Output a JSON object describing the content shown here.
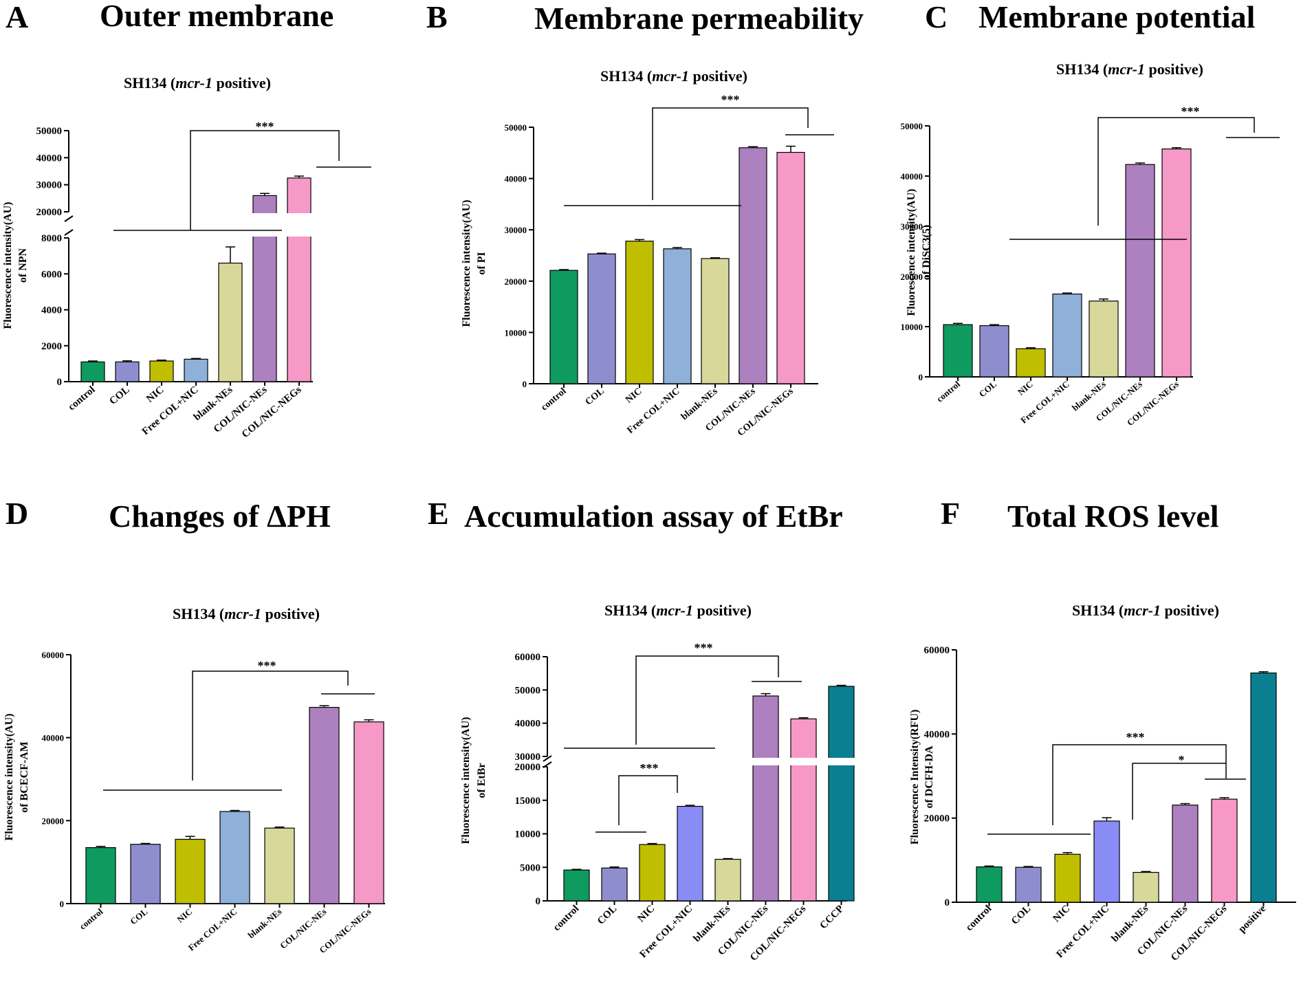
{
  "figure": {
    "panels": [
      {
        "letter": "A",
        "title": "Outer membrane"
      },
      {
        "letter": "B",
        "title": "Membrane permeability"
      },
      {
        "letter": "C",
        "title": "Membrane potential"
      },
      {
        "letter": "D",
        "title": "Changes of ΔPH"
      },
      {
        "letter": "E",
        "title": "Accumulation assay of EtBr"
      },
      {
        "letter": "F",
        "title": "Total ROS level"
      }
    ]
  },
  "colors": {
    "control": "#0f9a60",
    "COL": "#8e8ecf",
    "NIC": "#c0be00",
    "Free COL+NIC": "#8fb0d8",
    "Free COL+NIC (E,F)": "#8a8cf6",
    "blank-NEs": "#d8d89a",
    "COL/NIC-NEs": "#ad80c0",
    "COL/NIC-NEGs": "#f799c7",
    "CCCP": "#0a7f92",
    "positive": "#0a7f92"
  },
  "chart_data": [
    {
      "type": "bar",
      "panel": "A",
      "title": "Outer membrane",
      "subtitle": [
        "SH134 (",
        "mcr-1",
        " positive)"
      ],
      "ylabel": [
        "Fluorescence intensity(AU)",
        "of  NPN"
      ],
      "categories": [
        "control",
        "COL",
        "NIC",
        "Free COL+NIC",
        "blank-NEs",
        "COL/NIC-NEs",
        "COL/NIC-NEGs"
      ],
      "values": [
        1100,
        1100,
        1150,
        1250,
        6600,
        26000,
        32500
      ],
      "errors": [
        50,
        60,
        50,
        40,
        900,
        800,
        700
      ],
      "broken_axis": {
        "lower": [
          0,
          8000
        ],
        "upper": [
          20000,
          50000
        ]
      },
      "yticks_lower": [
        "0",
        "2000",
        "4000",
        "6000",
        "8000"
      ],
      "yticks_upper": [
        "20000",
        "30000",
        "40000",
        "50000"
      ],
      "significance": [
        "***"
      ]
    },
    {
      "type": "bar",
      "panel": "B",
      "title": "Membrane permeability",
      "subtitle": [
        "SH134 (",
        "mcr-1",
        " positive)"
      ],
      "ylabel": [
        "Fluorescence intensity(AU)",
        "of  PI"
      ],
      "categories": [
        "control",
        "COL",
        "NIC",
        "Free COL+NIC",
        "blank-NEs",
        "COL/NIC-NEs",
        "COL/NIC-NEGs"
      ],
      "values": [
        22100,
        25300,
        27800,
        26300,
        24400,
        46000,
        45100
      ],
      "errors": [
        150,
        150,
        300,
        250,
        150,
        200,
        1200
      ],
      "ylim": [
        0,
        50000
      ],
      "yticks": [
        "0",
        "10000",
        "20000",
        "30000",
        "40000",
        "50000"
      ],
      "significance": [
        "***"
      ]
    },
    {
      "type": "bar",
      "panel": "C",
      "title": "Membrane potential",
      "subtitle": [
        "SH134 (",
        "mcr-1",
        " positive)"
      ],
      "ylabel": [
        "Fluorescence intensity(AU)",
        "of  DiSC3(5)"
      ],
      "categories": [
        "control",
        "COL",
        "NIC",
        "Free COL+NIC",
        "blank-NEs",
        "COL/NIC-NEs",
        "COL/NIC-NEGs"
      ],
      "values": [
        10400,
        10200,
        5600,
        16500,
        15100,
        42300,
        45400
      ],
      "errors": [
        250,
        200,
        200,
        200,
        400,
        300,
        250
      ],
      "ylim": [
        0,
        50000
      ],
      "yticks": [
        "0",
        "10000",
        "20000",
        "30000",
        "40000",
        "50000"
      ],
      "significance": [
        "***"
      ]
    },
    {
      "type": "bar",
      "panel": "D",
      "title": "Changes of ΔPH",
      "subtitle": [
        "SH134 (",
        "mcr-1",
        " positive)"
      ],
      "ylabel": [
        "Fluorescence intensity(AU)",
        "of  BCECF-AM"
      ],
      "categories": [
        "control",
        "COL",
        "NIC",
        "Free COL+NIC",
        "blank-NEs",
        "COL/NIC-NEs",
        "COL/NIC-NEGs"
      ],
      "values": [
        13500,
        14300,
        15500,
        22200,
        18200,
        47300,
        43800
      ],
      "errors": [
        300,
        200,
        700,
        250,
        250,
        400,
        500
      ],
      "ylim": [
        0,
        60000
      ],
      "yticks": [
        "0",
        "20000",
        "40000",
        "60000"
      ],
      "significance": [
        "***"
      ]
    },
    {
      "type": "bar",
      "panel": "E",
      "title": "Accumulation assay of EtBr",
      "subtitle": [
        "SH134 (",
        "mcr-1",
        " positive)"
      ],
      "ylabel": [
        "Fluorescence intensity(AU)",
        "of  EtBr"
      ],
      "categories": [
        "control",
        "COL",
        "NIC",
        "Free COL+NIC",
        "blank-NEs",
        "COL/NIC-NEs",
        "COL/NIC-NEGs",
        "CCCP"
      ],
      "values": [
        4600,
        4900,
        8400,
        14100,
        6200,
        48200,
        41300,
        51100
      ],
      "errors": [
        100,
        150,
        150,
        150,
        100,
        700,
        350,
        300
      ],
      "broken_axis": {
        "lower": [
          0,
          20000
        ],
        "upper": [
          30000,
          60000
        ]
      },
      "yticks_lower": [
        "0",
        "5000",
        "10000",
        "15000",
        "20000"
      ],
      "yticks_upper": [
        "30000",
        "40000",
        "50000",
        "60000"
      ],
      "significance": [
        "***",
        "***"
      ]
    },
    {
      "type": "bar",
      "panel": "F",
      "title": "Total ROS level",
      "subtitle": [
        "SH134 (",
        "mcr-1",
        " positive)"
      ],
      "ylabel": [
        "Fluorescence Intensity(RFU)",
        "of DCFH-DA"
      ],
      "categories": [
        "control",
        "COL",
        "NIC",
        "Free COL+NIC",
        "blank-NEs",
        "COL/NIC-NEs",
        "COL/NIC-NEGs",
        "positive"
      ],
      "values": [
        8400,
        8300,
        11400,
        19300,
        7100,
        23100,
        24500,
        54500
      ],
      "errors": [
        200,
        200,
        400,
        800,
        200,
        350,
        350,
        300
      ],
      "ylim": [
        0,
        60000
      ],
      "yticks": [
        "0",
        "20000",
        "40000",
        "60000"
      ],
      "significance": [
        "***",
        "*"
      ]
    }
  ]
}
